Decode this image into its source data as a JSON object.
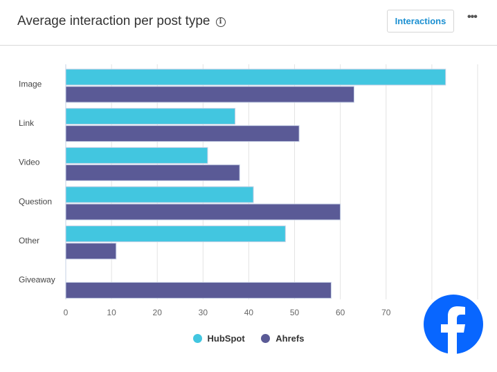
{
  "header": {
    "title": "Average interaction per post type",
    "info_icon": "info-icon",
    "button_label": "Interactions",
    "more_label": "•••"
  },
  "colors": {
    "hubspot": "#42c6e0",
    "ahrefs": "#5a5a96",
    "facebook": "#0866ff"
  },
  "chart_data": {
    "type": "bar",
    "orientation": "horizontal",
    "title": "Average interaction per post type",
    "categories": [
      "Image",
      "Link",
      "Video",
      "Question",
      "Other",
      "Giveaway"
    ],
    "series": [
      {
        "name": "HubSpot",
        "values": [
          83,
          37,
          31,
          41,
          48,
          0
        ]
      },
      {
        "name": "Ahrefs",
        "values": [
          63,
          51,
          38,
          60,
          11,
          58
        ]
      }
    ],
    "xlim": [
      0,
      90
    ],
    "ticks": [
      0,
      10,
      20,
      30,
      40,
      50,
      60,
      70,
      80
    ],
    "grid": true,
    "legend": "bottom-center"
  }
}
